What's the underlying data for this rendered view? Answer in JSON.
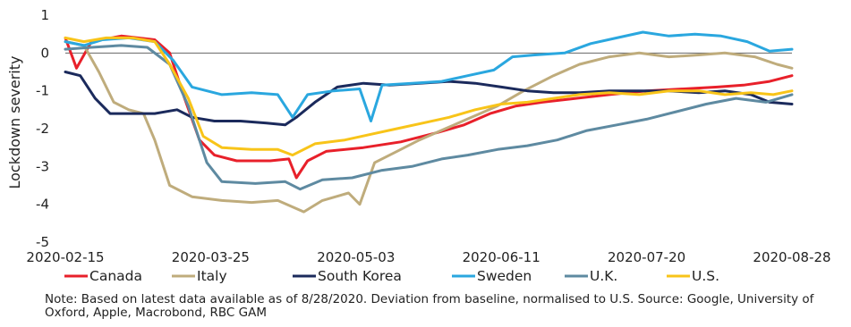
{
  "note": "Note: Based on latest data available as of 8/28/2020. Deviation from baseline, normalised to U.S. Source: Google, University of Oxford, Apple, Macrobond, RBC GAM",
  "chart_data": {
    "type": "line",
    "title": "",
    "xlabel": "",
    "ylabel": "Lockdown severity",
    "ylim": [
      -5,
      1
    ],
    "yticks": [
      1,
      0,
      -1,
      -2,
      -3,
      -4,
      -5
    ],
    "xlim": [
      "2020-02-15",
      "2020-08-28"
    ],
    "xticks": [
      "2020-02-15",
      "2020-03-25",
      "2020-05-03",
      "2020-06-11",
      "2020-07-20",
      "2020-08-28"
    ],
    "zero_line": true,
    "grid": false,
    "legend_position": "bottom",
    "series": [
      {
        "name": "Canada",
        "color": "#e8202a",
        "points": [
          [
            "2020-02-15",
            0.4
          ],
          [
            "2020-02-18",
            -0.4
          ],
          [
            "2020-02-22",
            0.3
          ],
          [
            "2020-03-01",
            0.45
          ],
          [
            "2020-03-10",
            0.35
          ],
          [
            "2020-03-14",
            0.0
          ],
          [
            "2020-03-18",
            -1.2
          ],
          [
            "2020-03-22",
            -2.3
          ],
          [
            "2020-03-26",
            -2.7
          ],
          [
            "2020-04-01",
            -2.85
          ],
          [
            "2020-04-10",
            -2.85
          ],
          [
            "2020-04-15",
            -2.8
          ],
          [
            "2020-04-17",
            -3.3
          ],
          [
            "2020-04-20",
            -2.85
          ],
          [
            "2020-04-25",
            -2.6
          ],
          [
            "2020-05-05",
            -2.5
          ],
          [
            "2020-05-15",
            -2.35
          ],
          [
            "2020-05-25",
            -2.1
          ],
          [
            "2020-06-01",
            -1.9
          ],
          [
            "2020-06-08",
            -1.6
          ],
          [
            "2020-06-15",
            -1.4
          ],
          [
            "2020-06-22",
            -1.3
          ],
          [
            "2020-07-01",
            -1.2
          ],
          [
            "2020-07-10",
            -1.1
          ],
          [
            "2020-07-20",
            -1.0
          ],
          [
            "2020-07-30",
            -0.95
          ],
          [
            "2020-08-08",
            -0.9
          ],
          [
            "2020-08-15",
            -0.85
          ],
          [
            "2020-08-22",
            -0.75
          ],
          [
            "2020-08-28",
            -0.6
          ]
        ]
      },
      {
        "name": "Italy",
        "color": "#bfac7c",
        "points": [
          [
            "2020-02-15",
            0.3
          ],
          [
            "2020-02-20",
            0.2
          ],
          [
            "2020-02-24",
            -0.5
          ],
          [
            "2020-02-28",
            -1.3
          ],
          [
            "2020-03-03",
            -1.5
          ],
          [
            "2020-03-07",
            -1.6
          ],
          [
            "2020-03-10",
            -2.3
          ],
          [
            "2020-03-14",
            -3.5
          ],
          [
            "2020-03-20",
            -3.8
          ],
          [
            "2020-03-28",
            -3.9
          ],
          [
            "2020-04-05",
            -3.95
          ],
          [
            "2020-04-12",
            -3.9
          ],
          [
            "2020-04-19",
            -4.2
          ],
          [
            "2020-04-24",
            -3.9
          ],
          [
            "2020-05-01",
            -3.7
          ],
          [
            "2020-05-04",
            -4.0
          ],
          [
            "2020-05-08",
            -2.9
          ],
          [
            "2020-05-14",
            -2.6
          ],
          [
            "2020-05-20",
            -2.3
          ],
          [
            "2020-05-27",
            -2.0
          ],
          [
            "2020-06-03",
            -1.7
          ],
          [
            "2020-06-10",
            -1.4
          ],
          [
            "2020-06-17",
            -1.0
          ],
          [
            "2020-06-25",
            -0.6
          ],
          [
            "2020-07-02",
            -0.3
          ],
          [
            "2020-07-10",
            -0.1
          ],
          [
            "2020-07-18",
            0.0
          ],
          [
            "2020-07-26",
            -0.1
          ],
          [
            "2020-08-03",
            -0.05
          ],
          [
            "2020-08-10",
            0.0
          ],
          [
            "2020-08-18",
            -0.1
          ],
          [
            "2020-08-24",
            -0.3
          ],
          [
            "2020-08-28",
            -0.4
          ]
        ]
      },
      {
        "name": "South Korea",
        "color": "#1b2a5c",
        "points": [
          [
            "2020-02-15",
            -0.5
          ],
          [
            "2020-02-19",
            -0.6
          ],
          [
            "2020-02-23",
            -1.2
          ],
          [
            "2020-02-27",
            -1.6
          ],
          [
            "2020-03-04",
            -1.6
          ],
          [
            "2020-03-10",
            -1.6
          ],
          [
            "2020-03-16",
            -1.5
          ],
          [
            "2020-03-20",
            -1.7
          ],
          [
            "2020-03-26",
            -1.8
          ],
          [
            "2020-04-02",
            -1.8
          ],
          [
            "2020-04-09",
            -1.85
          ],
          [
            "2020-04-14",
            -1.9
          ],
          [
            "2020-04-17",
            -1.7
          ],
          [
            "2020-04-22",
            -1.3
          ],
          [
            "2020-04-28",
            -0.9
          ],
          [
            "2020-05-05",
            -0.8
          ],
          [
            "2020-05-12",
            -0.85
          ],
          [
            "2020-05-20",
            -0.8
          ],
          [
            "2020-05-28",
            -0.75
          ],
          [
            "2020-06-04",
            -0.8
          ],
          [
            "2020-06-11",
            -0.9
          ],
          [
            "2020-06-18",
            -1.0
          ],
          [
            "2020-06-25",
            -1.05
          ],
          [
            "2020-07-02",
            -1.05
          ],
          [
            "2020-07-10",
            -1.0
          ],
          [
            "2020-07-18",
            -1.0
          ],
          [
            "2020-07-26",
            -1.0
          ],
          [
            "2020-08-03",
            -1.05
          ],
          [
            "2020-08-10",
            -1.0
          ],
          [
            "2020-08-17",
            -1.1
          ],
          [
            "2020-08-22",
            -1.3
          ],
          [
            "2020-08-28",
            -1.35
          ]
        ]
      },
      {
        "name": "Sweden",
        "color": "#2aa7df",
        "points": [
          [
            "2020-02-15",
            0.3
          ],
          [
            "2020-02-20",
            0.2
          ],
          [
            "2020-02-25",
            0.35
          ],
          [
            "2020-03-03",
            0.4
          ],
          [
            "2020-03-10",
            0.3
          ],
          [
            "2020-03-15",
            -0.2
          ],
          [
            "2020-03-20",
            -0.9
          ],
          [
            "2020-03-28",
            -1.1
          ],
          [
            "2020-04-05",
            -1.05
          ],
          [
            "2020-04-12",
            -1.1
          ],
          [
            "2020-04-16",
            -1.7
          ],
          [
            "2020-04-20",
            -1.1
          ],
          [
            "2020-04-27",
            -1.0
          ],
          [
            "2020-05-04",
            -0.95
          ],
          [
            "2020-05-07",
            -1.8
          ],
          [
            "2020-05-10",
            -0.85
          ],
          [
            "2020-05-18",
            -0.8
          ],
          [
            "2020-05-26",
            -0.75
          ],
          [
            "2020-06-02",
            -0.6
          ],
          [
            "2020-06-09",
            -0.45
          ],
          [
            "2020-06-14",
            -0.1
          ],
          [
            "2020-06-20",
            -0.05
          ],
          [
            "2020-06-28",
            0.0
          ],
          [
            "2020-07-05",
            0.25
          ],
          [
            "2020-07-12",
            0.4
          ],
          [
            "2020-07-19",
            0.55
          ],
          [
            "2020-07-26",
            0.45
          ],
          [
            "2020-08-02",
            0.5
          ],
          [
            "2020-08-09",
            0.45
          ],
          [
            "2020-08-16",
            0.3
          ],
          [
            "2020-08-22",
            0.05
          ],
          [
            "2020-08-28",
            0.1
          ]
        ]
      },
      {
        "name": "U.K.",
        "color": "#5e8aa1",
        "points": [
          [
            "2020-02-15",
            0.1
          ],
          [
            "2020-02-22",
            0.15
          ],
          [
            "2020-03-01",
            0.2
          ],
          [
            "2020-03-08",
            0.15
          ],
          [
            "2020-03-14",
            -0.3
          ],
          [
            "2020-03-19",
            -1.4
          ],
          [
            "2020-03-24",
            -2.9
          ],
          [
            "2020-03-28",
            -3.4
          ],
          [
            "2020-04-06",
            -3.45
          ],
          [
            "2020-04-14",
            -3.4
          ],
          [
            "2020-04-18",
            -3.6
          ],
          [
            "2020-04-24",
            -3.35
          ],
          [
            "2020-05-02",
            -3.3
          ],
          [
            "2020-05-10",
            -3.1
          ],
          [
            "2020-05-18",
            -3.0
          ],
          [
            "2020-05-26",
            -2.8
          ],
          [
            "2020-06-02",
            -2.7
          ],
          [
            "2020-06-10",
            -2.55
          ],
          [
            "2020-06-18",
            -2.45
          ],
          [
            "2020-06-26",
            -2.3
          ],
          [
            "2020-07-04",
            -2.05
          ],
          [
            "2020-07-12",
            -1.9
          ],
          [
            "2020-07-20",
            -1.75
          ],
          [
            "2020-07-28",
            -1.55
          ],
          [
            "2020-08-05",
            -1.35
          ],
          [
            "2020-08-13",
            -1.2
          ],
          [
            "2020-08-21",
            -1.3
          ],
          [
            "2020-08-28",
            -1.1
          ]
        ]
      },
      {
        "name": "U.S.",
        "color": "#f8c419",
        "points": [
          [
            "2020-02-15",
            0.4
          ],
          [
            "2020-02-20",
            0.3
          ],
          [
            "2020-02-26",
            0.4
          ],
          [
            "2020-03-04",
            0.4
          ],
          [
            "2020-03-10",
            0.3
          ],
          [
            "2020-03-14",
            -0.3
          ],
          [
            "2020-03-19",
            -1.2
          ],
          [
            "2020-03-23",
            -2.2
          ],
          [
            "2020-03-28",
            -2.5
          ],
          [
            "2020-04-05",
            -2.55
          ],
          [
            "2020-04-12",
            -2.55
          ],
          [
            "2020-04-16",
            -2.7
          ],
          [
            "2020-04-22",
            -2.4
          ],
          [
            "2020-04-30",
            -2.3
          ],
          [
            "2020-05-07",
            -2.15
          ],
          [
            "2020-05-14",
            -2.0
          ],
          [
            "2020-05-21",
            -1.85
          ],
          [
            "2020-05-28",
            -1.7
          ],
          [
            "2020-06-04",
            -1.5
          ],
          [
            "2020-06-11",
            -1.35
          ],
          [
            "2020-06-18",
            -1.3
          ],
          [
            "2020-06-25",
            -1.2
          ],
          [
            "2020-07-02",
            -1.1
          ],
          [
            "2020-07-10",
            -1.05
          ],
          [
            "2020-07-18",
            -1.1
          ],
          [
            "2020-07-26",
            -1.0
          ],
          [
            "2020-08-03",
            -1.0
          ],
          [
            "2020-08-10",
            -1.1
          ],
          [
            "2020-08-17",
            -1.05
          ],
          [
            "2020-08-23",
            -1.1
          ],
          [
            "2020-08-28",
            -1.0
          ]
        ]
      }
    ]
  }
}
